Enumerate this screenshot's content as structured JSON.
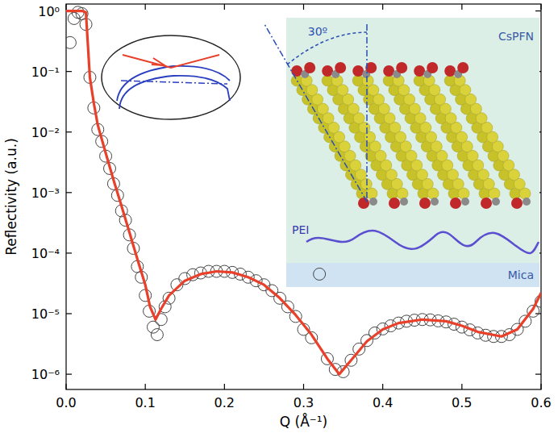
{
  "chart_data": {
    "type": "scatter",
    "xlabel": "Q (Å⁻¹)",
    "ylabel": "Reflectivity (a.u.)",
    "log": "y",
    "grid": false,
    "xlim": [
      0,
      0.6
    ],
    "ylim": [
      5.6e-07,
      1.3
    ],
    "xticks": [
      {
        "value": 0,
        "label": "0.0"
      },
      0.1,
      0.2,
      0.3,
      0.4,
      0.5,
      0.6
    ],
    "yticks": [
      {
        "value": 1,
        "label": "10⁰"
      },
      {
        "value": 0.1,
        "label": "10⁻¹"
      },
      {
        "value": 0.01,
        "label": "10⁻²"
      },
      {
        "value": 0.001,
        "label": "10⁻³"
      },
      {
        "value": 0.0001,
        "label": "10⁻⁴"
      },
      {
        "value": 1e-05,
        "label": "10⁻⁵"
      },
      {
        "value": 1e-06,
        "label": "10⁻⁶"
      }
    ],
    "annotations": [
      "30º",
      "CsPFN",
      "PEI",
      "Mica"
    ],
    "series": [
      {
        "type": "scatter",
        "marker": "circle",
        "color": "#444444",
        "x": [
          0.005,
          0.01,
          0.015,
          0.02,
          0.025,
          0.03,
          0.035,
          0.04,
          0.045,
          0.05,
          0.055,
          0.06,
          0.065,
          0.07,
          0.075,
          0.08,
          0.085,
          0.09,
          0.095,
          0.1,
          0.105,
          0.11,
          0.115,
          0.12,
          0.125,
          0.13,
          0.14,
          0.15,
          0.16,
          0.17,
          0.18,
          0.19,
          0.2,
          0.21,
          0.22,
          0.23,
          0.24,
          0.25,
          0.26,
          0.27,
          0.28,
          0.29,
          0.3,
          0.31,
          0.32,
          0.33,
          0.34,
          0.35,
          0.36,
          0.37,
          0.38,
          0.39,
          0.4,
          0.41,
          0.42,
          0.43,
          0.44,
          0.45,
          0.46,
          0.47,
          0.48,
          0.49,
          0.5,
          0.51,
          0.52,
          0.53,
          0.54,
          0.55,
          0.56,
          0.57,
          0.58,
          0.59,
          0.6
        ],
        "values": [
          0.3,
          0.75,
          0.95,
          0.9,
          0.6,
          0.08,
          0.025,
          0.011,
          0.007,
          0.004,
          0.0025,
          0.0014,
          0.0009,
          0.0005,
          0.00035,
          0.0002,
          0.00012,
          6e-05,
          4e-05,
          2e-05,
          1.1e-05,
          6e-06,
          4.5e-06,
          8e-06,
          1.3e-05,
          1.8e-05,
          3e-05,
          3.8e-05,
          4.4e-05,
          4.7e-05,
          5e-05,
          5e-05,
          5e-05,
          4.8e-05,
          4.5e-05,
          4e-05,
          3.5e-05,
          3e-05,
          2.4e-05,
          1.8e-05,
          1.3e-05,
          9e-06,
          5.5e-06,
          4e-06,
          4.5e-05,
          1.8e-06,
          1.2e-06,
          1.1e-06,
          1.7e-06,
          2.6e-06,
          3.6e-06,
          4.8e-06,
          5.6e-06,
          6.3e-06,
          7e-06,
          7.5e-06,
          7.8e-06,
          8e-06,
          7.9e-06,
          7.6e-06,
          7.3e-06,
          6.7e-06,
          6e-06,
          5.4e-06,
          4.8e-06,
          4.4e-06,
          4.2e-06,
          4.2e-06,
          4.5e-06,
          5.5e-06,
          7.5e-06,
          1.1e-05,
          1.6e-05
        ]
      },
      {
        "type": "line",
        "line_style": "solid",
        "color": "#e8402a",
        "x": [
          0,
          0.02,
          0.025,
          0.03,
          0.035,
          0.04,
          0.05,
          0.06,
          0.07,
          0.08,
          0.09,
          0.1,
          0.106,
          0.113,
          0.12,
          0.13,
          0.15,
          0.17,
          0.19,
          0.21,
          0.23,
          0.25,
          0.27,
          0.29,
          0.31,
          0.33,
          0.345,
          0.36,
          0.38,
          0.4,
          0.42,
          0.45,
          0.48,
          0.5,
          0.52,
          0.55,
          0.57,
          0.59,
          0.6
        ],
        "values": [
          1,
          1,
          0.95,
          0.08,
          0.03,
          0.013,
          0.0045,
          0.0016,
          0.0006,
          0.00022,
          8e-05,
          3e-05,
          1.3e-05,
          8e-06,
          1.2e-05,
          2e-05,
          3.5e-05,
          4.5e-05,
          5e-05,
          4.8e-05,
          4e-05,
          3e-05,
          1.8e-05,
          9.5e-06,
          4.5e-06,
          1.8e-06,
          1e-06,
          1.7e-06,
          3.5e-06,
          5.5e-06,
          7e-06,
          8e-06,
          7.5e-06,
          6.3e-06,
          5e-06,
          4.2e-06,
          5.5e-06,
          1.2e-05,
          2.2e-05
        ]
      }
    ]
  }
}
